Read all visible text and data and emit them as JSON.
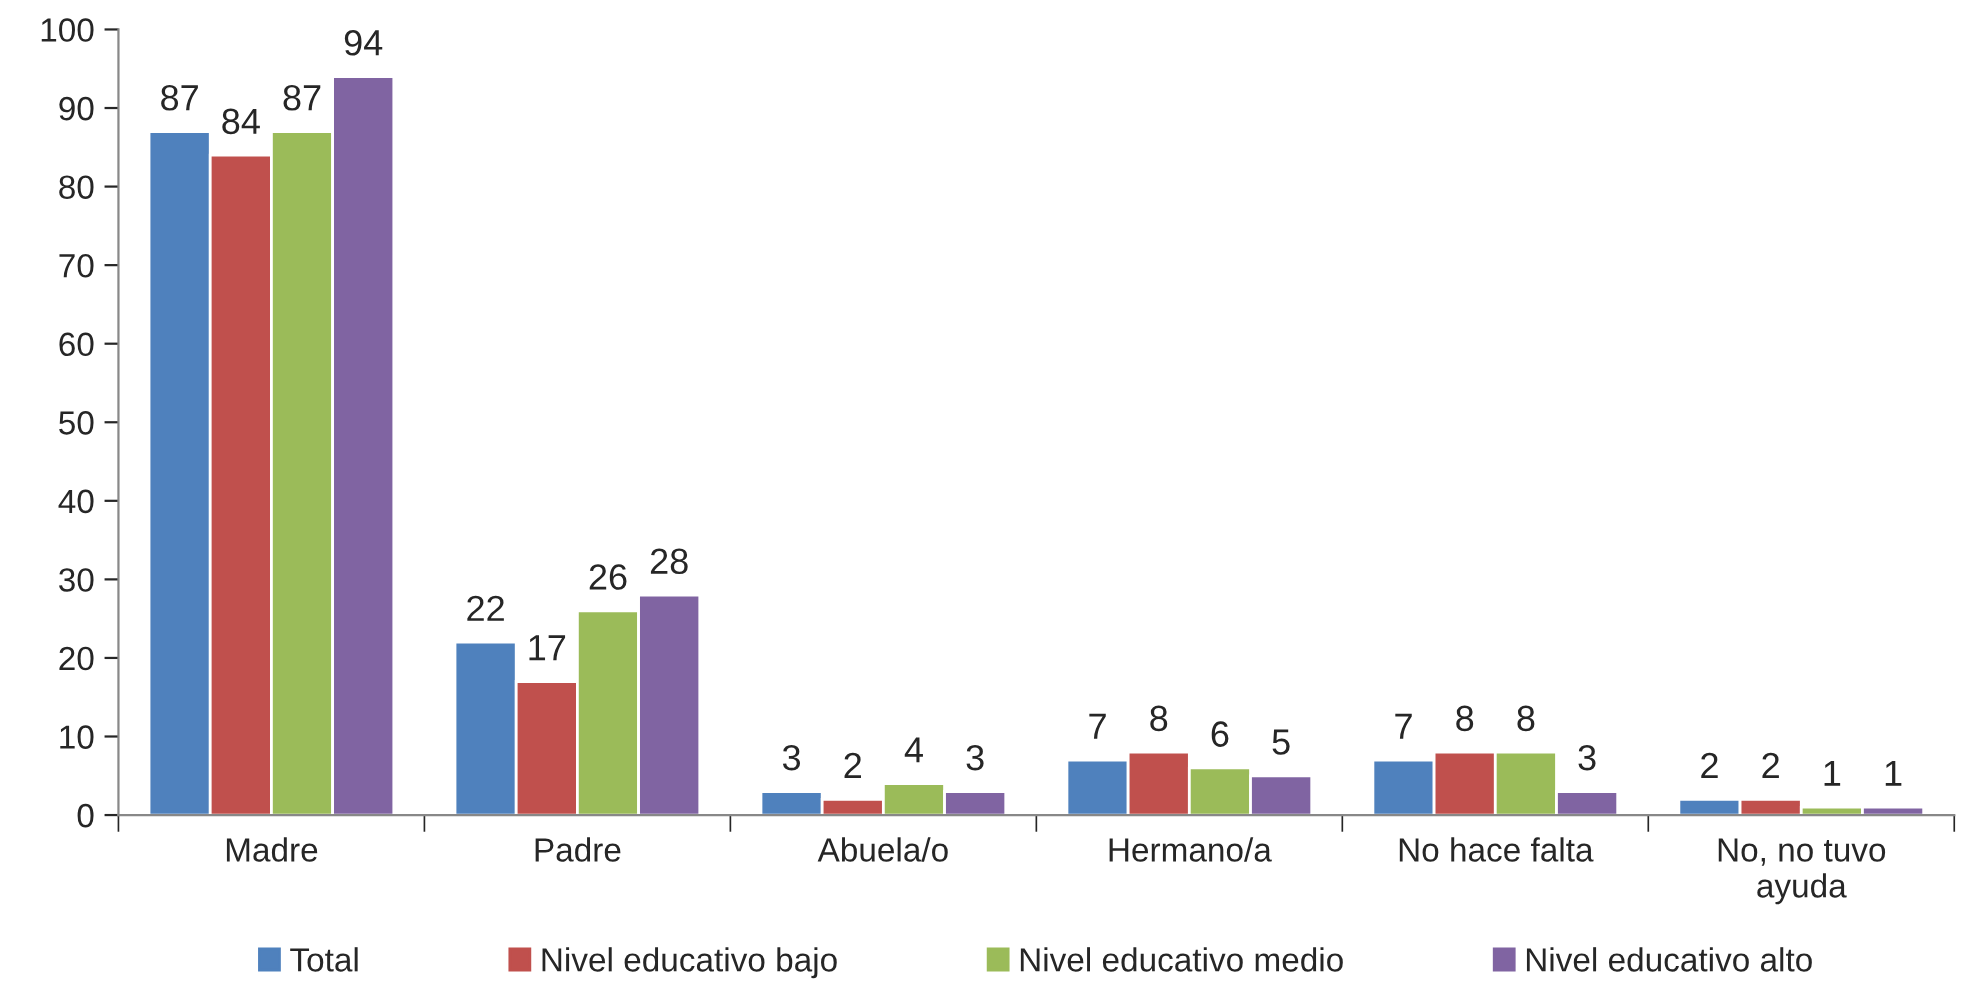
{
  "chart_data": {
    "type": "bar",
    "categories": [
      "Madre",
      "Padre",
      "Abuela/o",
      "Hermano/a",
      "No hace falta",
      "No, no tuvo\nayuda"
    ],
    "series": [
      {
        "name": "Total",
        "color": "#4f81bd",
        "values": [
          87,
          22,
          3,
          7,
          7,
          2
        ]
      },
      {
        "name": "Nivel educativo bajo",
        "color": "#c0504d",
        "values": [
          84,
          17,
          2,
          8,
          8,
          2
        ]
      },
      {
        "name": "Nivel educativo medio",
        "color": "#9bbb59",
        "values": [
          87,
          26,
          4,
          6,
          8,
          1
        ]
      },
      {
        "name": "Nivel educativo alto",
        "color": "#8064a2",
        "values": [
          94,
          28,
          3,
          5,
          3,
          1
        ]
      }
    ],
    "ylim": [
      0,
      100
    ],
    "yticks": [
      0,
      10,
      20,
      30,
      40,
      50,
      60,
      70,
      80,
      90,
      100
    ],
    "data_labels": true,
    "grid": false,
    "legend": "bottom"
  }
}
